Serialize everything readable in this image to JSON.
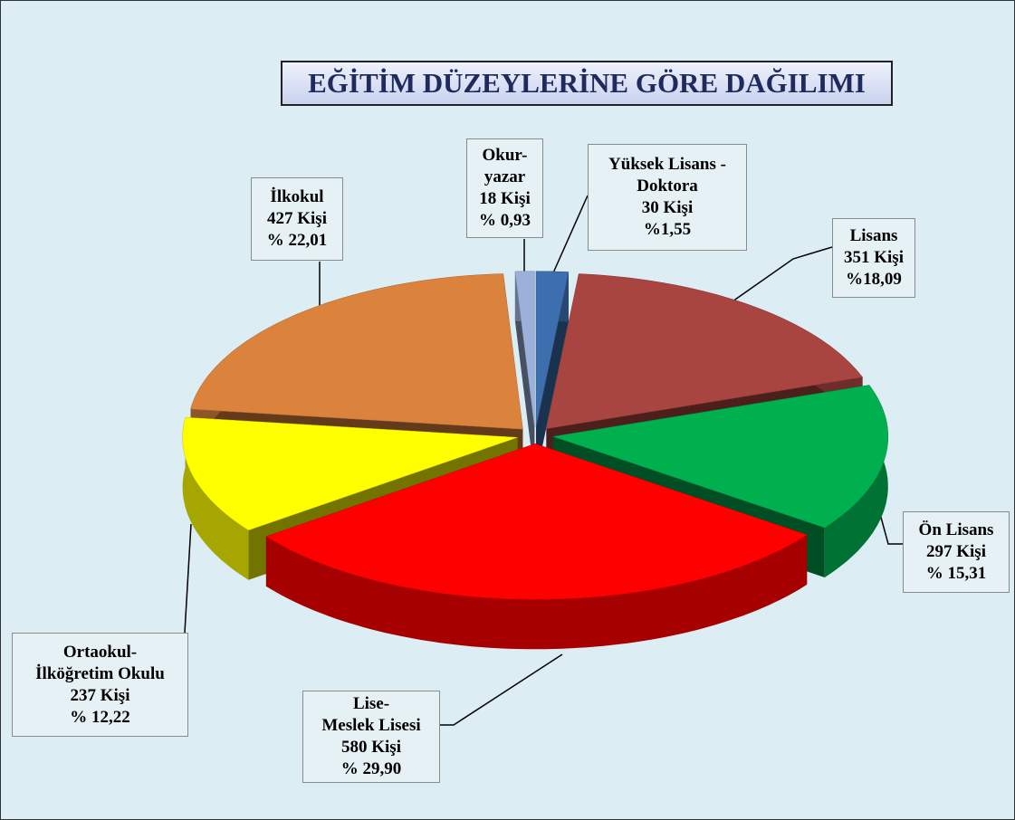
{
  "chart_data": {
    "type": "pie",
    "title": "EĞİTİM DÜZEYLERİNE GÖRE DAĞILIMI",
    "categories": [
      "Yüksek Lisans -\nDoktora",
      "Lisans",
      "Ön Lisans",
      "Lise-\nMeslek Lisesi",
      "Ortaokul-\nİlköğretim Okulu",
      "İlkokul",
      "Okur-\nyazar"
    ],
    "values": [
      30,
      351,
      297,
      580,
      237,
      427,
      18
    ],
    "value_labels": [
      "30 Kişi",
      "351 Kişi",
      "297 Kişi",
      "580 Kişi",
      "237 Kişi",
      "427 Kişi",
      "18 Kişi"
    ],
    "percents": [
      1.55,
      18.09,
      15.31,
      29.9,
      12.22,
      22.01,
      0.93
    ],
    "percent_labels": [
      "%1,55",
      "%18,09",
      "% 15,31",
      "% 29,90",
      "% 12,22",
      "% 22,01",
      "% 0,93"
    ],
    "colors": [
      "#3d6fae",
      "#a94541",
      "#00b04f",
      "#ff0000",
      "#ffff00",
      "#db823d",
      "#9bb1da"
    ]
  }
}
